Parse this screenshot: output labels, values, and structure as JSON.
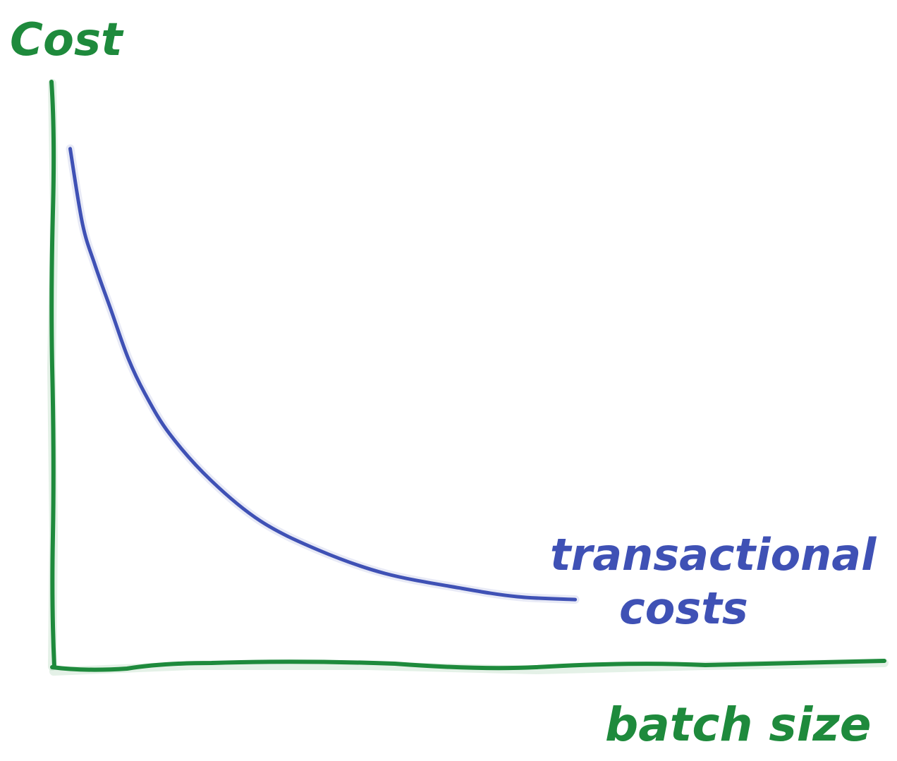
{
  "colors": {
    "axis": "#1e8a3c",
    "curve": "#3f51b5"
  },
  "chart_data": {
    "type": "line",
    "title": "",
    "xlabel": "batch size",
    "ylabel": "Cost",
    "xlim": [
      0,
      10
    ],
    "ylim": [
      0,
      10
    ],
    "grid": false,
    "legend": "none",
    "series": [
      {
        "name": "transactional costs",
        "x": [
          0.2,
          0.35,
          0.5,
          0.7,
          0.9,
          1.1,
          1.4,
          1.9,
          2.5,
          3.2,
          4.0,
          4.9,
          5.6,
          6.3
        ],
        "y": [
          8.9,
          7.6,
          6.9,
          6.1,
          5.3,
          4.7,
          4.0,
          3.2,
          2.5,
          2.0,
          1.6,
          1.35,
          1.2,
          1.15
        ]
      }
    ]
  }
}
